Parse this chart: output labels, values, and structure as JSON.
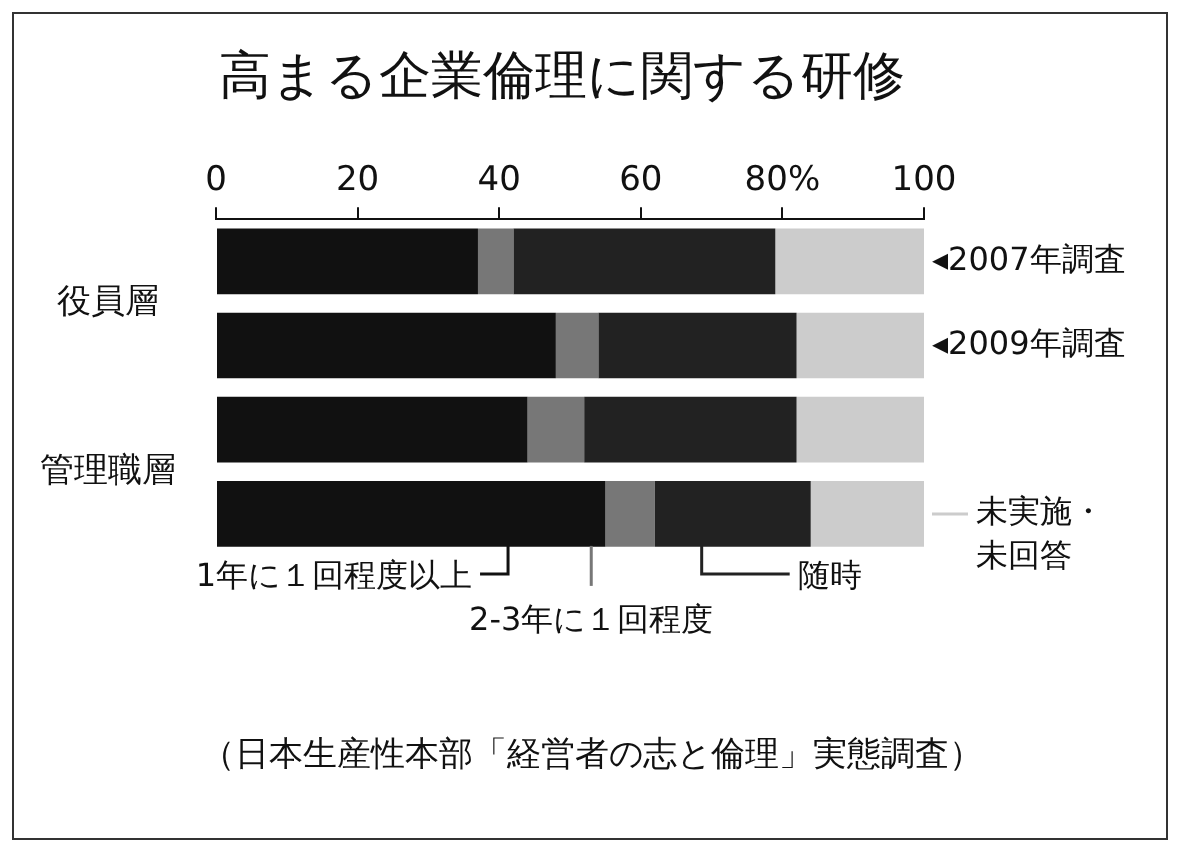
{
  "chart_data": {
    "type": "bar",
    "orientation": "horizontal",
    "stacked": true,
    "title": "高まる企業倫理に関する研修",
    "categories": [
      "役員層",
      null,
      "管理職層",
      null
    ],
    "series": [
      {
        "name": "1年に１回程度以上",
        "color": "#111111",
        "values": [
          37,
          48,
          44,
          55
        ]
      },
      {
        "name": "2-3年に１回程度",
        "color": "#777777",
        "values": [
          5,
          6,
          8,
          7
        ]
      },
      {
        "name": "随時",
        "color": "#222222",
        "values": [
          37,
          28,
          30,
          22
        ]
      },
      {
        "name": "未実施・未回答",
        "color": "#cccccc",
        "values": [
          21,
          18,
          18,
          16
        ]
      }
    ],
    "legend": "bottom",
    "xlim": [
      0,
      100
    ],
    "xticks": [
      0,
      20,
      40,
      60,
      {
        "value": 80,
        "label": "80%"
      },
      100
    ],
    "annotations": [
      "◂2007年調査",
      "◂2009年調査",
      "（日本生産性本部「経営者の志と倫理」実態調査）"
    ]
  }
}
